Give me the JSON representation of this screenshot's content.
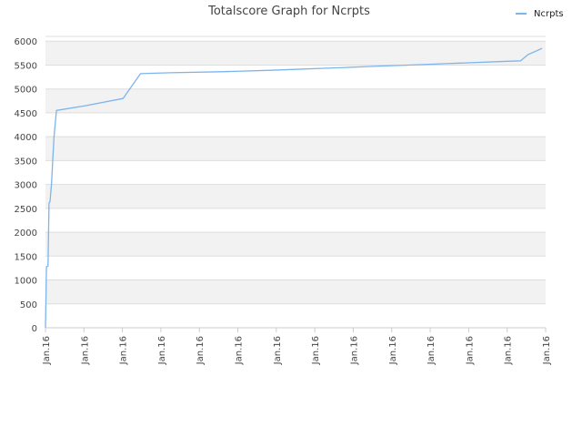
{
  "chart_data": {
    "type": "line",
    "title": "Totalscore Graph for Ncrpts",
    "xlabel": "",
    "ylabel": "",
    "ylim": [
      0,
      6100
    ],
    "yticks": [
      0,
      500,
      1000,
      1500,
      2000,
      2500,
      3000,
      3500,
      4000,
      4500,
      5000,
      5500,
      6000
    ],
    "xtick_labels": [
      "Jan.16",
      "Jan.16",
      "Jan.16",
      "Jan.16",
      "Jan.16",
      "Jan.16",
      "Jan.16",
      "Jan.16",
      "Jan.16",
      "Jan.16",
      "Jan.16",
      "Jan.16",
      "Jan.16",
      "Jan.16"
    ],
    "xlim": [
      0,
      100
    ],
    "grid": "horizontal-bands",
    "legend_position": "top-right",
    "colors": {
      "series": "#7cb5ec",
      "band": "#f2f2f2",
      "grid": "#dddddd",
      "axis": "#cccccc"
    },
    "series": [
      {
        "name": "Ncrpts",
        "x": [
          0,
          0.2,
          0.5,
          0.7,
          0.9,
          1.2,
          1.4,
          1.7,
          2.2,
          8,
          15.5,
          19,
          25,
          35,
          45,
          50,
          55,
          60,
          65,
          70,
          75,
          80,
          85,
          90,
          95,
          96.5,
          98,
          99.3
        ],
        "y": [
          0,
          1280,
          1290,
          2610,
          2640,
          3000,
          3400,
          4000,
          4550,
          4650,
          4800,
          5320,
          5340,
          5360,
          5390,
          5410,
          5430,
          5450,
          5470,
          5490,
          5510,
          5530,
          5550,
          5570,
          5590,
          5720,
          5790,
          5850
        ]
      }
    ]
  }
}
